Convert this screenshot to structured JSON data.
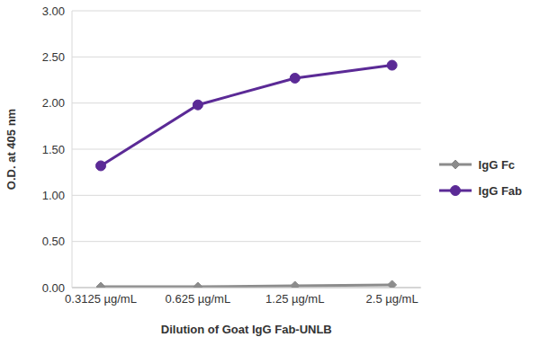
{
  "chart_data": {
    "type": "line",
    "x_label": "Dilution of Goat IgG Fab-UNLB",
    "y_label": "O.D. at 405 nm",
    "categories": [
      "0.3125 µg/mL",
      "0.625 µg/mL",
      "1.25 µg/mL",
      "2.5 µg/mL"
    ],
    "series": [
      {
        "name": "IgG Fc",
        "color": "#8c8c8c",
        "marker": "diamond",
        "values": [
          0.01,
          0.01,
          0.02,
          0.03
        ]
      },
      {
        "name": "IgG Fab",
        "color": "#5b2a96",
        "marker": "circle",
        "values": [
          1.32,
          1.98,
          2.27,
          2.41
        ]
      }
    ],
    "ylim": [
      0,
      3
    ],
    "yticks": [
      {
        "value": 0,
        "label": "0.00"
      },
      {
        "value": 0.5,
        "label": "0.50"
      },
      {
        "value": 1,
        "label": "1.00"
      },
      {
        "value": 1.5,
        "label": "1.50"
      },
      {
        "value": 2,
        "label": "2.00"
      },
      {
        "value": 2.5,
        "label": "2.50"
      },
      {
        "value": 3,
        "label": "3.00"
      }
    ],
    "grid": true,
    "legend": "right"
  }
}
